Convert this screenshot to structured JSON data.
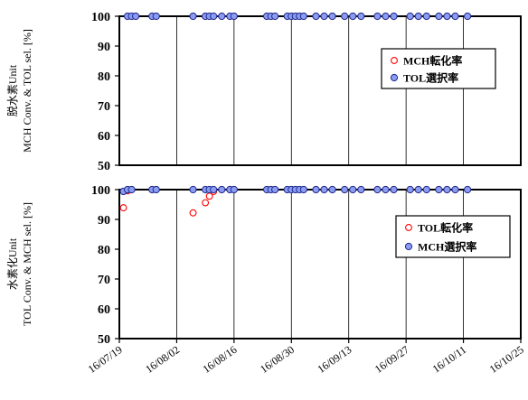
{
  "colors": {
    "conversion_marker_edge": "#ff0000",
    "selectivity_marker_fill": "#8c9cf2",
    "selectivity_marker_edge": "#1a2a8c",
    "gridline": "#000000"
  },
  "x_axis": {
    "type": "date",
    "tick_dates": [
      "2016-07-19",
      "2016-08-02",
      "2016-08-16",
      "2016-08-30",
      "2016-09-13",
      "2016-09-27",
      "2016-10-11",
      "2016-10-25"
    ],
    "tick_labels": [
      "16/07/19",
      "16/08/02",
      "16/08/16",
      "16/08/30",
      "16/09/13",
      "16/09/27",
      "16/10/11",
      "16/10/25"
    ],
    "range": [
      "2016-07-19",
      "2016-10-25"
    ]
  },
  "chart_data": [
    {
      "type": "scatter",
      "ylabel_lines": [
        "脱水素Unit",
        "MCH Conv. & TOL sel. [%]"
      ],
      "ylim": [
        50,
        100
      ],
      "yticks": [
        50,
        60,
        70,
        80,
        90,
        100
      ],
      "grid": "vertical",
      "legend_position": "right",
      "series": [
        {
          "name": "MCH転化率",
          "marker": "open-circle-red",
          "points": [
            {
              "x": "2016-07-21",
              "y": 100
            },
            {
              "x": "2016-07-22",
              "y": 100
            },
            {
              "x": "2016-07-23",
              "y": 100
            },
            {
              "x": "2016-07-27",
              "y": 100
            },
            {
              "x": "2016-07-28",
              "y": 100
            },
            {
              "x": "2016-08-06",
              "y": 100
            },
            {
              "x": "2016-08-09",
              "y": 100
            },
            {
              "x": "2016-08-10",
              "y": 100
            },
            {
              "x": "2016-08-11",
              "y": 100
            },
            {
              "x": "2016-08-13",
              "y": 100
            },
            {
              "x": "2016-08-15",
              "y": 100
            },
            {
              "x": "2016-08-16",
              "y": 100
            },
            {
              "x": "2016-08-24",
              "y": 100
            },
            {
              "x": "2016-08-25",
              "y": 100
            },
            {
              "x": "2016-08-26",
              "y": 100
            },
            {
              "x": "2016-08-29",
              "y": 100
            },
            {
              "x": "2016-08-30",
              "y": 100
            },
            {
              "x": "2016-08-31",
              "y": 100
            },
            {
              "x": "2016-09-01",
              "y": 100
            },
            {
              "x": "2016-09-02",
              "y": 100
            },
            {
              "x": "2016-09-05",
              "y": 100
            },
            {
              "x": "2016-09-07",
              "y": 100
            },
            {
              "x": "2016-09-09",
              "y": 100
            },
            {
              "x": "2016-09-12",
              "y": 100
            },
            {
              "x": "2016-09-14",
              "y": 100
            },
            {
              "x": "2016-09-16",
              "y": 100
            },
            {
              "x": "2016-09-20",
              "y": 100
            },
            {
              "x": "2016-09-22",
              "y": 100
            },
            {
              "x": "2016-09-24",
              "y": 100
            },
            {
              "x": "2016-09-28",
              "y": 100
            },
            {
              "x": "2016-09-30",
              "y": 100
            },
            {
              "x": "2016-10-02",
              "y": 100
            },
            {
              "x": "2016-10-05",
              "y": 100
            },
            {
              "x": "2016-10-07",
              "y": 100
            },
            {
              "x": "2016-10-09",
              "y": 100
            },
            {
              "x": "2016-10-12",
              "y": 100
            }
          ]
        },
        {
          "name": "TOL選択率",
          "marker": "filled-circle-blue",
          "points": [
            {
              "x": "2016-07-21",
              "y": 100
            },
            {
              "x": "2016-07-22",
              "y": 100
            },
            {
              "x": "2016-07-23",
              "y": 100
            },
            {
              "x": "2016-07-27",
              "y": 100
            },
            {
              "x": "2016-07-28",
              "y": 100
            },
            {
              "x": "2016-08-06",
              "y": 100
            },
            {
              "x": "2016-08-09",
              "y": 100
            },
            {
              "x": "2016-08-10",
              "y": 100
            },
            {
              "x": "2016-08-11",
              "y": 100
            },
            {
              "x": "2016-08-13",
              "y": 100
            },
            {
              "x": "2016-08-15",
              "y": 100
            },
            {
              "x": "2016-08-16",
              "y": 100
            },
            {
              "x": "2016-08-24",
              "y": 100
            },
            {
              "x": "2016-08-25",
              "y": 100
            },
            {
              "x": "2016-08-26",
              "y": 100
            },
            {
              "x": "2016-08-29",
              "y": 100
            },
            {
              "x": "2016-08-30",
              "y": 100
            },
            {
              "x": "2016-08-31",
              "y": 100
            },
            {
              "x": "2016-09-01",
              "y": 100
            },
            {
              "x": "2016-09-02",
              "y": 100
            },
            {
              "x": "2016-09-05",
              "y": 100
            },
            {
              "x": "2016-09-07",
              "y": 100
            },
            {
              "x": "2016-09-09",
              "y": 100
            },
            {
              "x": "2016-09-12",
              "y": 100
            },
            {
              "x": "2016-09-14",
              "y": 100
            },
            {
              "x": "2016-09-16",
              "y": 100
            },
            {
              "x": "2016-09-20",
              "y": 100
            },
            {
              "x": "2016-09-22",
              "y": 100
            },
            {
              "x": "2016-09-24",
              "y": 100
            },
            {
              "x": "2016-09-28",
              "y": 100
            },
            {
              "x": "2016-09-30",
              "y": 100
            },
            {
              "x": "2016-10-02",
              "y": 100
            },
            {
              "x": "2016-10-05",
              "y": 100
            },
            {
              "x": "2016-10-07",
              "y": 100
            },
            {
              "x": "2016-10-09",
              "y": 100
            },
            {
              "x": "2016-10-12",
              "y": 100
            }
          ]
        }
      ]
    },
    {
      "type": "scatter",
      "ylabel_lines": [
        "水素化Unit",
        "TOL Conv. & MCH sel. [%]"
      ],
      "ylim": [
        50,
        100
      ],
      "yticks": [
        50,
        60,
        70,
        80,
        90,
        100
      ],
      "grid": "vertical",
      "legend_position": "right",
      "series": [
        {
          "name": "TOL転化率",
          "marker": "open-circle-red",
          "points": [
            {
              "x": "2016-07-20",
              "y": 93.9
            },
            {
              "x": "2016-07-21",
              "y": 99.6
            },
            {
              "x": "2016-07-22",
              "y": 100
            },
            {
              "x": "2016-07-27",
              "y": 100
            },
            {
              "x": "2016-07-28",
              "y": 100
            },
            {
              "x": "2016-08-06",
              "y": 92.2
            },
            {
              "x": "2016-08-09",
              "y": 95.6
            },
            {
              "x": "2016-08-10",
              "y": 97.8
            },
            {
              "x": "2016-08-11",
              "y": 99.4
            },
            {
              "x": "2016-08-13",
              "y": 100
            },
            {
              "x": "2016-08-15",
              "y": 100
            },
            {
              "x": "2016-08-16",
              "y": 100
            },
            {
              "x": "2016-08-24",
              "y": 100
            },
            {
              "x": "2016-08-25",
              "y": 100
            },
            {
              "x": "2016-08-26",
              "y": 100
            },
            {
              "x": "2016-08-29",
              "y": 100
            },
            {
              "x": "2016-08-30",
              "y": 100
            },
            {
              "x": "2016-08-31",
              "y": 100
            },
            {
              "x": "2016-09-01",
              "y": 100
            },
            {
              "x": "2016-09-02",
              "y": 100
            },
            {
              "x": "2016-09-05",
              "y": 100
            },
            {
              "x": "2016-09-07",
              "y": 100
            },
            {
              "x": "2016-09-09",
              "y": 100
            },
            {
              "x": "2016-09-12",
              "y": 100
            },
            {
              "x": "2016-09-14",
              "y": 100
            },
            {
              "x": "2016-09-16",
              "y": 100
            },
            {
              "x": "2016-09-20",
              "y": 100
            },
            {
              "x": "2016-09-22",
              "y": 100
            },
            {
              "x": "2016-09-24",
              "y": 100
            },
            {
              "x": "2016-09-28",
              "y": 100
            },
            {
              "x": "2016-09-30",
              "y": 100
            },
            {
              "x": "2016-10-02",
              "y": 100
            },
            {
              "x": "2016-10-05",
              "y": 100
            },
            {
              "x": "2016-10-07",
              "y": 100
            },
            {
              "x": "2016-10-09",
              "y": 100
            },
            {
              "x": "2016-10-12",
              "y": 100
            }
          ]
        },
        {
          "name": "MCH選択率",
          "marker": "filled-circle-blue",
          "points": [
            {
              "x": "2016-07-20",
              "y": 99.4
            },
            {
              "x": "2016-07-21",
              "y": 100
            },
            {
              "x": "2016-07-22",
              "y": 100
            },
            {
              "x": "2016-07-27",
              "y": 100
            },
            {
              "x": "2016-07-28",
              "y": 100
            },
            {
              "x": "2016-08-06",
              "y": 100
            },
            {
              "x": "2016-08-09",
              "y": 100
            },
            {
              "x": "2016-08-10",
              "y": 100
            },
            {
              "x": "2016-08-11",
              "y": 100
            },
            {
              "x": "2016-08-13",
              "y": 100
            },
            {
              "x": "2016-08-15",
              "y": 100
            },
            {
              "x": "2016-08-16",
              "y": 100
            },
            {
              "x": "2016-08-24",
              "y": 100
            },
            {
              "x": "2016-08-25",
              "y": 100
            },
            {
              "x": "2016-08-26",
              "y": 100
            },
            {
              "x": "2016-08-29",
              "y": 100
            },
            {
              "x": "2016-08-30",
              "y": 100
            },
            {
              "x": "2016-08-31",
              "y": 100
            },
            {
              "x": "2016-09-01",
              "y": 100
            },
            {
              "x": "2016-09-02",
              "y": 100
            },
            {
              "x": "2016-09-05",
              "y": 100
            },
            {
              "x": "2016-09-07",
              "y": 100
            },
            {
              "x": "2016-09-09",
              "y": 100
            },
            {
              "x": "2016-09-12",
              "y": 100
            },
            {
              "x": "2016-09-14",
              "y": 100
            },
            {
              "x": "2016-09-16",
              "y": 100
            },
            {
              "x": "2016-09-20",
              "y": 100
            },
            {
              "x": "2016-09-22",
              "y": 100
            },
            {
              "x": "2016-09-24",
              "y": 100
            },
            {
              "x": "2016-09-28",
              "y": 100
            },
            {
              "x": "2016-09-30",
              "y": 100
            },
            {
              "x": "2016-10-02",
              "y": 100
            },
            {
              "x": "2016-10-05",
              "y": 100
            },
            {
              "x": "2016-10-07",
              "y": 100
            },
            {
              "x": "2016-10-09",
              "y": 100
            },
            {
              "x": "2016-10-12",
              "y": 100
            }
          ]
        }
      ]
    }
  ]
}
